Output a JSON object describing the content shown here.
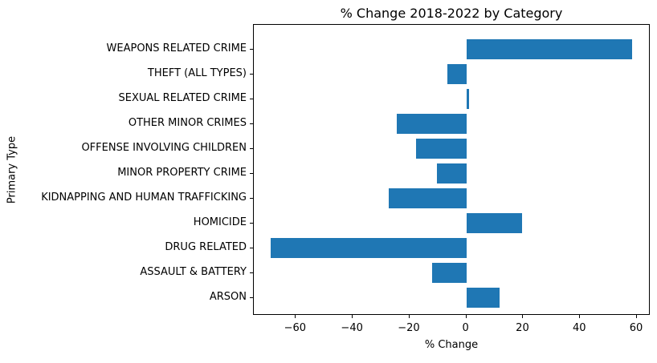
{
  "chart_data": {
    "type": "bar",
    "orientation": "horizontal",
    "title": "% Change 2018-2022 by Category",
    "xlabel": "% Change",
    "ylabel": "Primary Type",
    "categories": [
      "WEAPONS RELATED CRIME",
      "THEFT (ALL TYPES)",
      "SEXUAL RELATED CRIME",
      "OTHER MINOR CRIMES",
      "OFFENSE INVOLVING CHILDREN",
      "MINOR PROPERTY CRIME",
      "KIDNAPPING AND HUMAN TRAFFICKING",
      "HOMICIDE",
      "DRUG RELATED",
      "ASSAULT & BATTERY",
      "ARSON"
    ],
    "values": [
      58.2,
      -6.6,
      0.8,
      -24.5,
      -17.8,
      -10.3,
      -27.2,
      19.6,
      -69.0,
      -12.1,
      11.6
    ],
    "bar_color": "#1f77b4",
    "background_color": "#ffffff",
    "xlim": [
      -74.8,
      64.8
    ],
    "x_tick_values": [
      -60,
      -40,
      -20,
      0,
      20,
      40,
      60
    ],
    "x_tick_labels": [
      "−60",
      "−40",
      "−20",
      "0",
      "20",
      "40",
      "60"
    ],
    "grid": false,
    "legend": null
  }
}
